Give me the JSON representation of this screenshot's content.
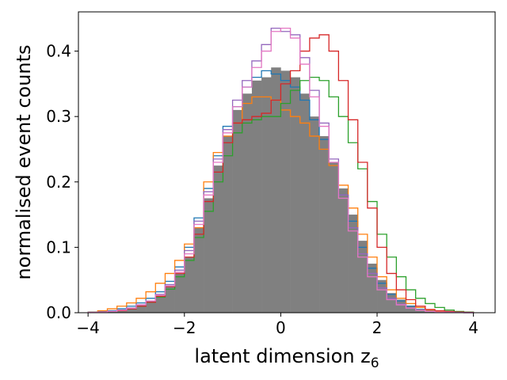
{
  "chart_data": {
    "type": "histogram",
    "xlabel": "latent dimension z",
    "xlabel_sub": "6",
    "ylabel": "normalised event counts",
    "xlim": [
      -4.2,
      4.45
    ],
    "ylim": [
      0,
      0.46
    ],
    "grid": false,
    "legend": "none",
    "x_ticks": [
      -4,
      -2,
      0,
      2,
      4
    ],
    "x_tick_labels": [
      "−4",
      "−2",
      "0",
      "2",
      "4"
    ],
    "y_ticks": [
      0.0,
      0.1,
      0.2,
      0.3,
      0.4
    ],
    "y_tick_labels": [
      "0.0",
      "0.1",
      "0.2",
      "0.3",
      "0.4"
    ],
    "bin_edges_start": -4.0,
    "bin_width": 0.2,
    "reference": {
      "color": "#808080",
      "values": [
        0.001,
        0.002,
        0.003,
        0.005,
        0.008,
        0.012,
        0.018,
        0.026,
        0.04,
        0.06,
        0.085,
        0.13,
        0.175,
        0.225,
        0.27,
        0.31,
        0.335,
        0.355,
        0.36,
        0.375,
        0.37,
        0.36,
        0.335,
        0.3,
        0.27,
        0.23,
        0.19,
        0.15,
        0.11,
        0.075,
        0.05,
        0.03,
        0.02,
        0.011,
        0.006,
        0.003,
        0.002,
        0.001,
        0.0005,
        0.0002
      ]
    },
    "series": [
      {
        "color": "#1f77b4",
        "values": [
          0.001,
          0.002,
          0.003,
          0.006,
          0.01,
          0.015,
          0.022,
          0.032,
          0.048,
          0.07,
          0.1,
          0.145,
          0.19,
          0.24,
          0.285,
          0.315,
          0.345,
          0.36,
          0.37,
          0.365,
          0.355,
          0.345,
          0.325,
          0.295,
          0.265,
          0.225,
          0.18,
          0.14,
          0.1,
          0.068,
          0.045,
          0.028,
          0.018,
          0.01,
          0.005,
          0.003,
          0.002,
          0.001,
          0.0005,
          0.0002
        ]
      },
      {
        "color": "#ff7f0e",
        "values": [
          0.001,
          0.003,
          0.006,
          0.01,
          0.015,
          0.022,
          0.032,
          0.045,
          0.06,
          0.08,
          0.105,
          0.13,
          0.2,
          0.245,
          0.27,
          0.29,
          0.32,
          0.33,
          0.33,
          0.325,
          0.31,
          0.3,
          0.29,
          0.27,
          0.25,
          0.225,
          0.195,
          0.16,
          0.12,
          0.085,
          0.055,
          0.035,
          0.022,
          0.014,
          0.008,
          0.004,
          0.002,
          0.001,
          0.0005,
          0.0002
        ]
      },
      {
        "color": "#2ca02c",
        "values": [
          0.001,
          0.001,
          0.002,
          0.003,
          0.006,
          0.01,
          0.016,
          0.024,
          0.036,
          0.055,
          0.08,
          0.115,
          0.155,
          0.2,
          0.24,
          0.275,
          0.29,
          0.295,
          0.3,
          0.3,
          0.32,
          0.34,
          0.355,
          0.36,
          0.355,
          0.33,
          0.3,
          0.26,
          0.22,
          0.17,
          0.12,
          0.085,
          0.055,
          0.035,
          0.022,
          0.014,
          0.008,
          0.004,
          0.002,
          0.001
        ]
      },
      {
        "color": "#d62728",
        "values": [
          0.0005,
          0.001,
          0.002,
          0.003,
          0.006,
          0.01,
          0.016,
          0.025,
          0.04,
          0.06,
          0.085,
          0.12,
          0.17,
          0.215,
          0.26,
          0.29,
          0.295,
          0.3,
          0.305,
          0.325,
          0.35,
          0.37,
          0.4,
          0.42,
          0.425,
          0.4,
          0.355,
          0.295,
          0.23,
          0.16,
          0.1,
          0.06,
          0.035,
          0.02,
          0.01,
          0.005,
          0.003,
          0.002,
          0.001,
          0.0005
        ]
      },
      {
        "color": "#9467bd",
        "values": [
          0.0005,
          0.001,
          0.002,
          0.004,
          0.007,
          0.012,
          0.018,
          0.028,
          0.043,
          0.065,
          0.095,
          0.14,
          0.185,
          0.235,
          0.28,
          0.325,
          0.355,
          0.385,
          0.41,
          0.435,
          0.43,
          0.425,
          0.39,
          0.34,
          0.29,
          0.235,
          0.18,
          0.13,
          0.09,
          0.06,
          0.038,
          0.022,
          0.013,
          0.007,
          0.004,
          0.002,
          0.001,
          0.0005,
          0.0002,
          0.0001
        ]
      },
      {
        "color": "#e377c2",
        "values": [
          0.0005,
          0.001,
          0.002,
          0.004,
          0.007,
          0.012,
          0.018,
          0.027,
          0.041,
          0.062,
          0.09,
          0.135,
          0.18,
          0.23,
          0.275,
          0.315,
          0.345,
          0.375,
          0.4,
          0.43,
          0.435,
          0.42,
          0.38,
          0.33,
          0.285,
          0.23,
          0.175,
          0.125,
          0.085,
          0.055,
          0.035,
          0.02,
          0.012,
          0.007,
          0.004,
          0.002,
          0.001,
          0.0005,
          0.0002,
          0.0001
        ]
      }
    ]
  }
}
